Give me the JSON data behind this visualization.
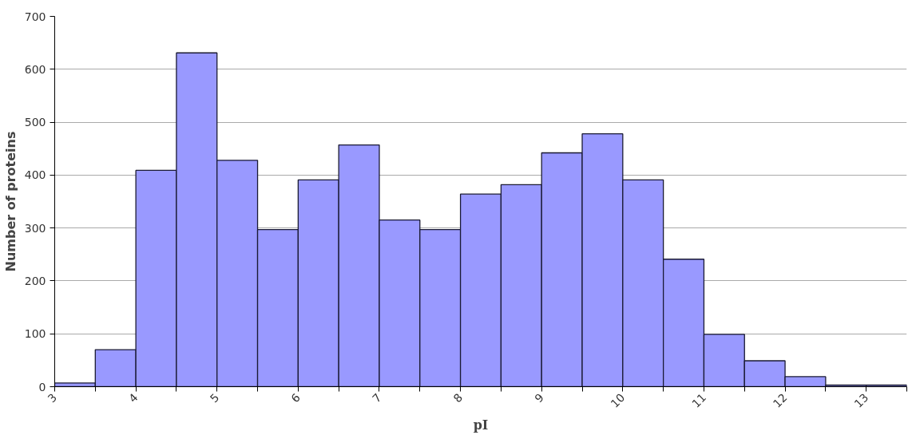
{
  "chart_data": {
    "type": "histogram",
    "xlabel": "pI",
    "ylabel": "Number of proteins",
    "color": "#9999ff",
    "bins": [
      3,
      3.5,
      4,
      4.5,
      5,
      5.5,
      6,
      6.5,
      7,
      7.5,
      8,
      8.5,
      9,
      9.5,
      10,
      10.5,
      11,
      11.5,
      12,
      12.5,
      13,
      13.5
    ],
    "values": [
      7,
      70,
      409,
      631,
      428,
      297,
      391,
      457,
      315,
      297,
      364,
      382,
      442,
      478,
      391,
      241,
      99,
      49,
      19,
      3,
      3
    ],
    "xlim": [
      3,
      13.5
    ],
    "ylim": [
      0,
      700
    ],
    "xticks": [
      3,
      {
        "value": 3.5,
        "label": null
      },
      4,
      {
        "value": 4.5,
        "label": null
      },
      5,
      {
        "value": 5.5,
        "label": null
      },
      6,
      {
        "value": 6.5,
        "label": null
      },
      7,
      {
        "value": 7.5,
        "label": null
      },
      8,
      {
        "value": 8.5,
        "label": null
      },
      9,
      {
        "value": 9.5,
        "label": null
      },
      10,
      {
        "value": 10.5,
        "label": null
      },
      11,
      {
        "value": 11.5,
        "label": null
      },
      12,
      {
        "value": 12.5,
        "label": null
      },
      13,
      {
        "value": 13.5,
        "label": null
      }
    ],
    "yticks": [
      0,
      100,
      200,
      300,
      400,
      500,
      600,
      700
    ],
    "grid": "y"
  }
}
